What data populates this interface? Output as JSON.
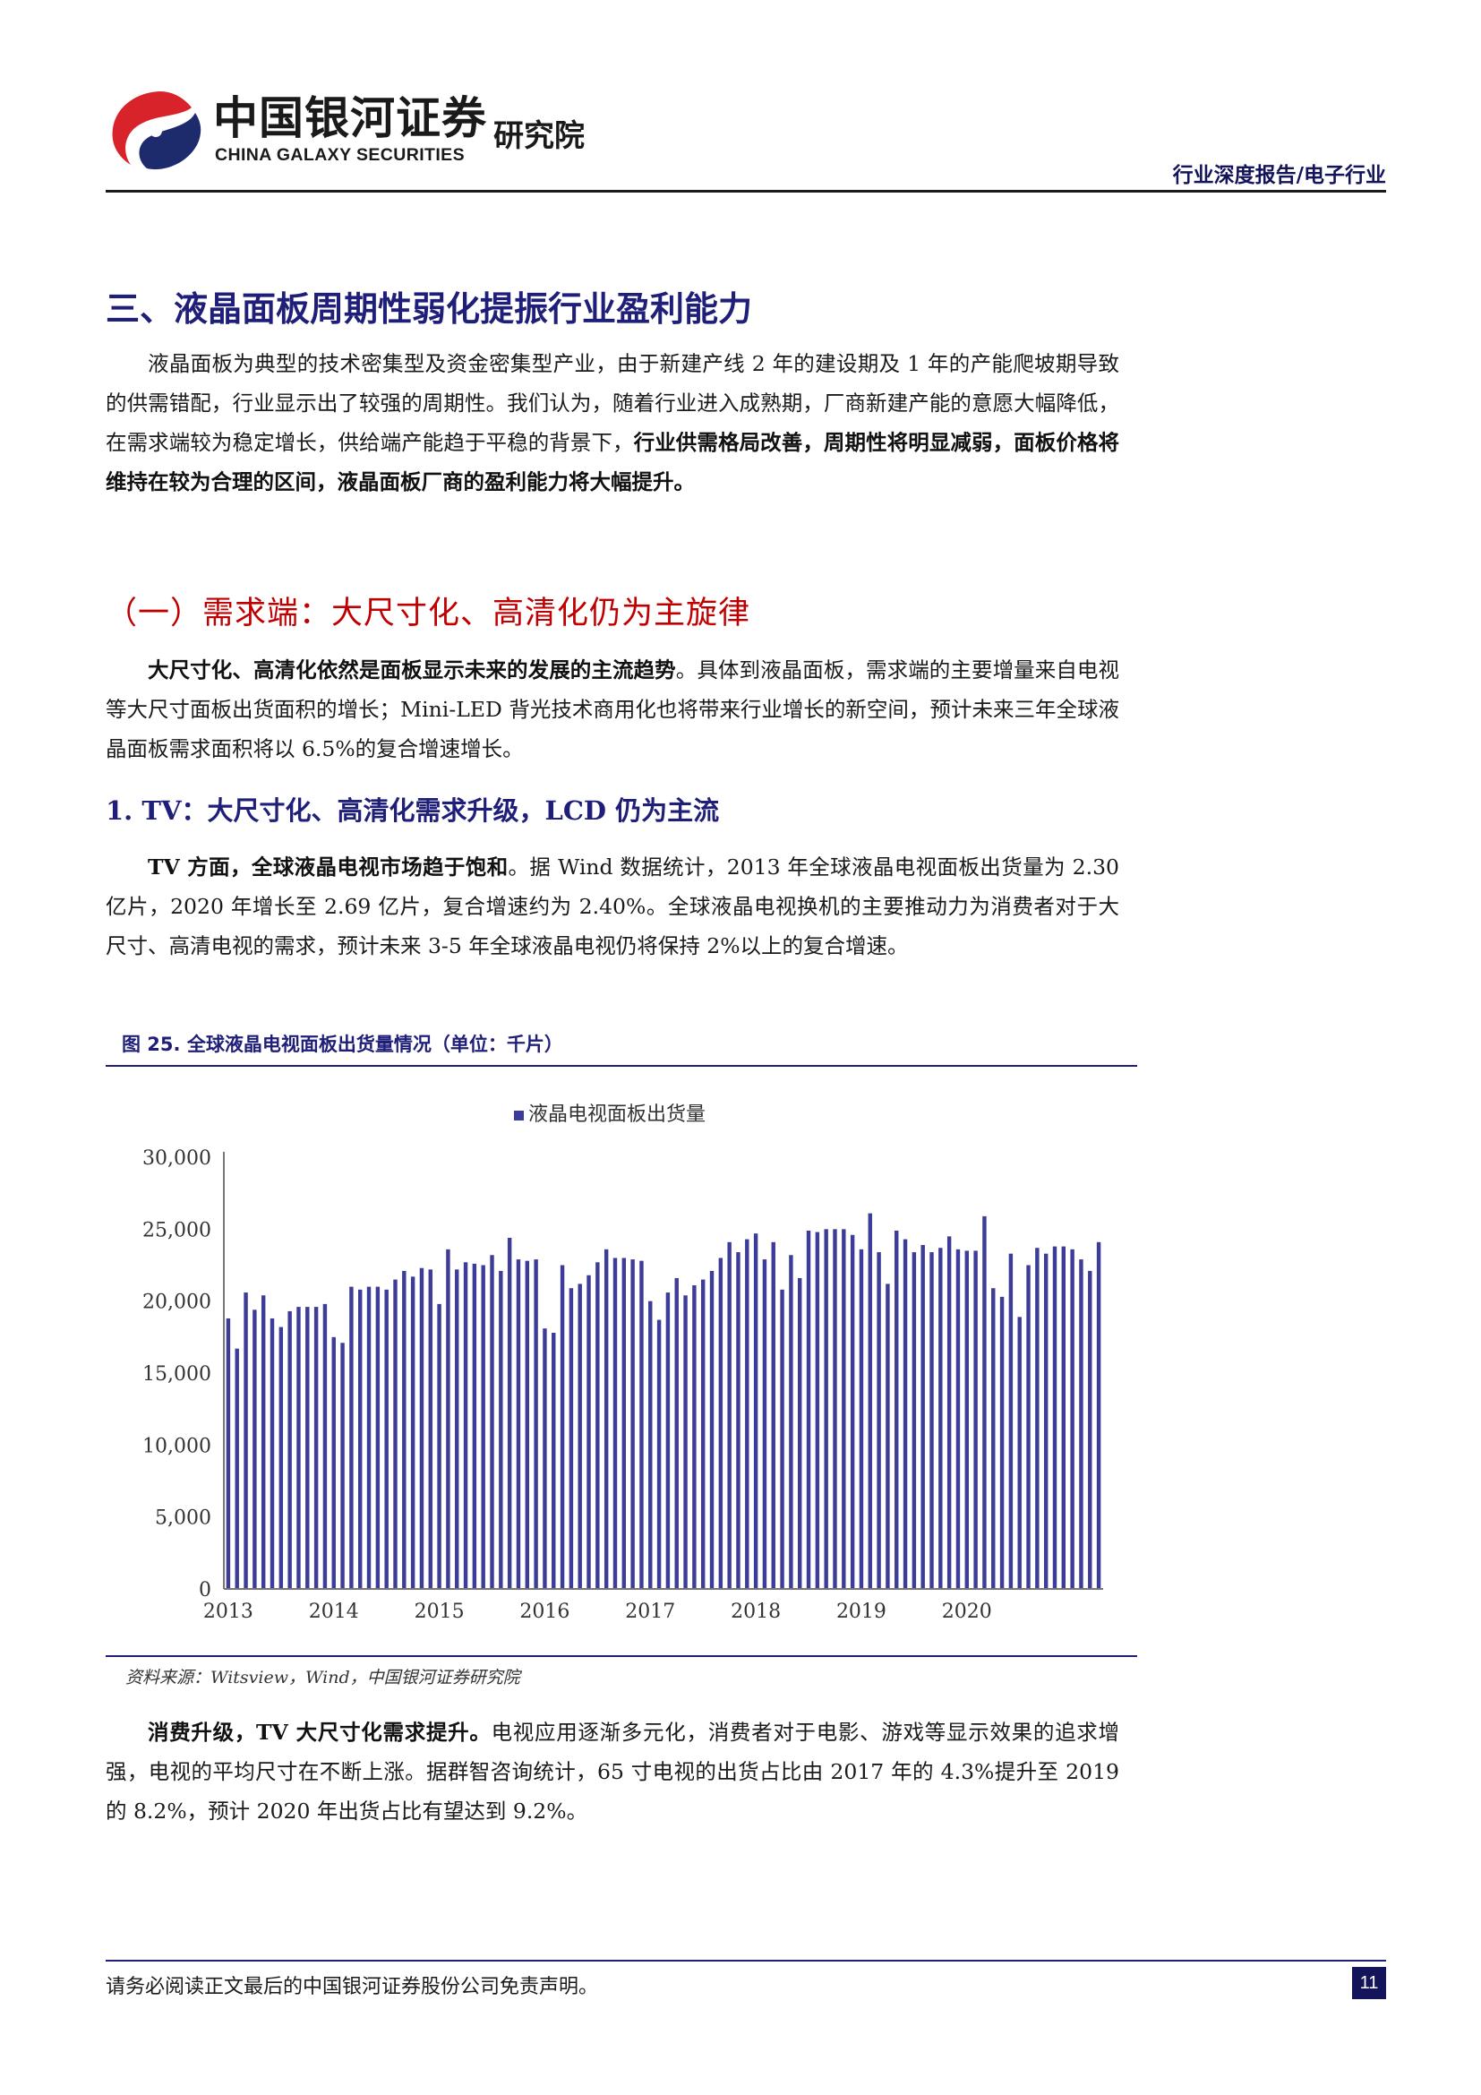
{
  "header": {
    "logo_cn": "中国银河证券",
    "logo_en": "CHINA GALAXY SECURITIES",
    "institute": "研究院",
    "report_type": "行业深度报告/电子行业"
  },
  "section": {
    "title": "三、液晶面板周期性弱化提振行业盈利能力",
    "p1_normal": "液晶面板为典型的技术密集型及资金密集型产业，由于新建产线 2 年的建设期及 1 年的产能爬坡期导致的供需错配，行业显示出了较强的周期性。我们认为，随着行业进入成熟期，厂商新建产能的意愿大幅降低，在需求端较为稳定增长，供给端产能趋于平稳的背景下，",
    "p1_bold": "行业供需格局改善，周期性将明显减弱，面板价格将维持在较为合理的区间，液晶面板厂商的盈利能力将大幅提升。"
  },
  "subsection": {
    "title": "（一）需求端：大尺寸化、高清化仍为主旋律",
    "p2_bold": "大尺寸化、高清化依然是面板显示未来的发展的主流趋势",
    "p2_normal": "。具体到液晶面板，需求端的主要增量来自电视等大尺寸面板出货面积的增长；Mini-LED 背光技术商用化也将带来行业增长的新空间，预计未来三年全球液晶面板需求面积将以 6.5%的复合增速增长。"
  },
  "item1": {
    "title": "1. TV：大尺寸化、高清化需求升级，LCD 仍为主流",
    "p3_bold": "TV 方面，全球液晶电视市场趋于饱和",
    "p3_normal": "。据 Wind 数据统计，2013 年全球液晶电视面板出货量为 2.30 亿片，2020 年增长至 2.69 亿片，复合增速约为 2.40%。全球液晶电视换机的主要推动力为消费者对于大尺寸、高清电视的需求，预计未来 3-5 年全球液晶电视仍将保持 2%以上的复合增速。"
  },
  "figure": {
    "title": "图 25. 全球液晶电视面板出货量情况（单位：千片）",
    "source": "资料来源：Witsview，Wind，中国银河证券研究院"
  },
  "chart_data": {
    "type": "bar",
    "title": "",
    "legend": [
      "液晶电视面板出货量"
    ],
    "legend_position": "top",
    "xlabel": "",
    "ylabel": "",
    "ylim": [
      0,
      30000
    ],
    "y_ticks": [
      "30,000",
      "25,000",
      "20,000",
      "15,000",
      "10,000",
      "5,000",
      "0"
    ],
    "x_tick_labels": [
      "2013",
      "2014",
      "2015",
      "2016",
      "2017",
      "2018",
      "2019",
      "2020"
    ],
    "series": [
      {
        "name": "液晶电视面板出货量",
        "color": "#3d3d99",
        "values": [
          18800,
          16700,
          20600,
          19400,
          20400,
          18800,
          18200,
          19300,
          19600,
          19600,
          19600,
          19800,
          17500,
          17100,
          21000,
          20800,
          21000,
          21000,
          20800,
          21500,
          22100,
          21700,
          22300,
          22200,
          19800,
          23600,
          22200,
          22700,
          22600,
          22500,
          23200,
          22100,
          24400,
          22900,
          22800,
          22900,
          18100,
          17800,
          22500,
          20900,
          21200,
          21800,
          22700,
          23600,
          23000,
          23000,
          22900,
          22800,
          20000,
          18700,
          20600,
          21600,
          20400,
          21100,
          21500,
          22100,
          23000,
          24100,
          23400,
          24300,
          24700,
          22900,
          24100,
          20800,
          23200,
          21600,
          24900,
          24800,
          25000,
          25000,
          25000,
          24600,
          23600,
          26100,
          23400,
          21200,
          24900,
          24300,
          23400,
          23900,
          23400,
          23700,
          24500,
          23600,
          23500,
          23500,
          25900,
          20900,
          20300,
          23300,
          18900,
          22500,
          23700,
          23300,
          23800,
          23800,
          23600,
          22900,
          22100,
          24100
        ]
      }
    ]
  },
  "consumption": {
    "p4_bold": "消费升级，TV 大尺寸化需求提升。",
    "p4_normal": "电视应用逐渐多元化，消费者对于电影、游戏等显示效果的追求增强，电视的平均尺寸在不断上涨。据群智咨询统计，65 寸电视的出货占比由 2017 年的 4.3%提升至 2019 的 8.2%，预计 2020 年出货占比有望达到 9.2%。"
  },
  "footer": {
    "disclaimer": "请务必阅读正文最后的中国银河证券股份公司免责声明。",
    "page": "11"
  },
  "colors": {
    "navy": "#1f1f7a",
    "red": "#c00000",
    "bar": "#3d3d99"
  }
}
